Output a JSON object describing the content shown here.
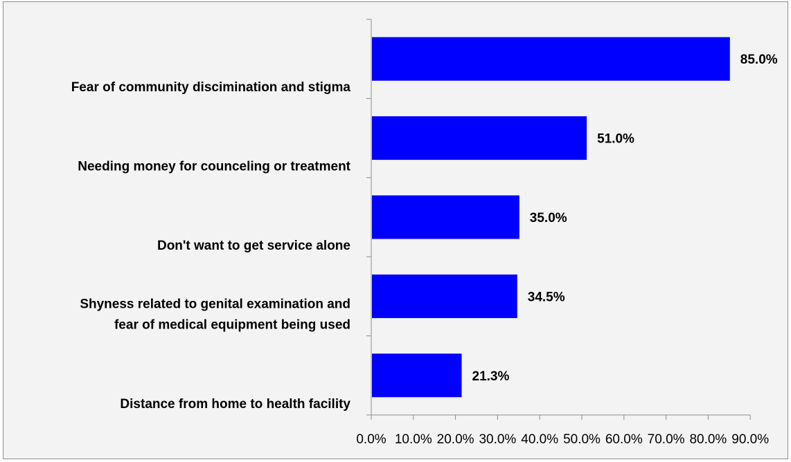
{
  "chart_data": {
    "type": "bar",
    "orientation": "horizontal",
    "categories": [
      [
        "Fear of community discimination and stigma"
      ],
      [
        "Needing money for counceling or treatment"
      ],
      [
        "Don't want to get service alone"
      ],
      [
        "Shyness related to genital examination and",
        "fear of medical equipment being used"
      ],
      [
        "Distance from home to health facility"
      ]
    ],
    "values": [
      85.0,
      51.0,
      35.0,
      34.5,
      21.3
    ],
    "value_labels": [
      "85.0%",
      "51.0%",
      "35.0%",
      "34.5%",
      "21.3%"
    ],
    "xlim": [
      0,
      90
    ],
    "x_ticks": [
      0,
      10,
      20,
      30,
      40,
      50,
      60,
      70,
      80,
      90
    ],
    "x_tick_labels": [
      "0.0%",
      "10.0%",
      "20.0%",
      "30.0%",
      "40.0%",
      "50.0%",
      "60.0%",
      "70.0%",
      "80.0%",
      "90.0%"
    ],
    "title": "",
    "xlabel": "",
    "ylabel": "",
    "grid": false,
    "legend": "none",
    "bar_color": "#0000ff",
    "background_color": "#f3f3f3"
  }
}
